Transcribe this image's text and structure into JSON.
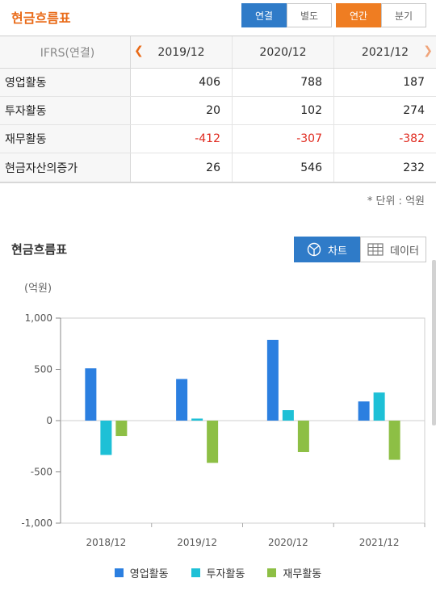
{
  "header": {
    "title": "현금흐름표",
    "consolidation_tabs": [
      {
        "label": "연결",
        "active": true
      },
      {
        "label": "별도",
        "active": false
      }
    ],
    "period_tabs": [
      {
        "label": "연간",
        "active": true
      },
      {
        "label": "분기",
        "active": false
      }
    ]
  },
  "table": {
    "basis_label": "IFRS(연결)",
    "columns": [
      "2019/12",
      "2020/12",
      "2021/12"
    ],
    "rows": [
      {
        "label": "영업활동",
        "values": [
          "406",
          "788",
          "187"
        ],
        "negative": false
      },
      {
        "label": "투자활동",
        "values": [
          "20",
          "102",
          "274"
        ],
        "negative": false
      },
      {
        "label": "재무활동",
        "values": [
          "-412",
          "-307",
          "-382"
        ],
        "negative": true
      },
      {
        "label": "현금자산의증가",
        "values": [
          "26",
          "546",
          "232"
        ],
        "negative": false
      }
    ],
    "unit_note": "* 단위 : 억원"
  },
  "chart_section": {
    "title": "현금흐름표",
    "chart_button": "차트",
    "data_button": "데이터",
    "y_unit": "(억원)"
  },
  "colors": {
    "accent_orange": "#e96a17",
    "accent_blue": "#2f7bc8",
    "negative_red": "#e02b20"
  },
  "chart_data": {
    "type": "bar",
    "categories": [
      "2018/12",
      "2019/12",
      "2020/12",
      "2021/12"
    ],
    "series": [
      {
        "name": "영업활동",
        "color": "#2b7fe0",
        "values": [
          510,
          406,
          788,
          187
        ]
      },
      {
        "name": "투자활동",
        "color": "#1ec0d6",
        "values": [
          -335,
          20,
          102,
          274
        ]
      },
      {
        "name": "재무활동",
        "color": "#8dbf45",
        "values": [
          -150,
          -412,
          -307,
          -382
        ]
      }
    ],
    "yticks": [
      "1,000",
      "500",
      "0",
      "-500",
      "-1,000"
    ],
    "ylim": [
      -1000,
      1000
    ],
    "grid": false,
    "legend": "bottom"
  }
}
